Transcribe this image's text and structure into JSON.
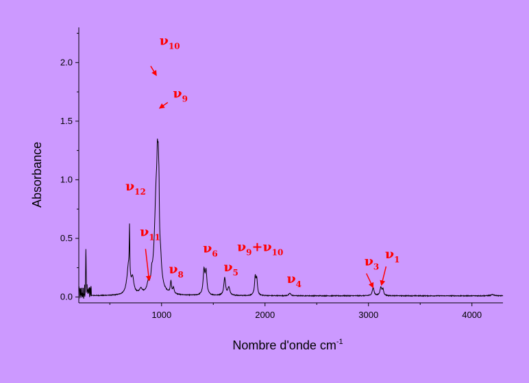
{
  "chart_data": {
    "type": "line",
    "title": "",
    "xlabel": "Nombre d'onde cm",
    "xlabel_superscript": "-1",
    "ylabel": "Absorbance",
    "xlim": [
      200,
      4300
    ],
    "ylim": [
      -0.05,
      2.3
    ],
    "x_ticks": [
      {
        "value": 1000,
        "label": "1000"
      },
      {
        "value": 2000,
        "label": "2000"
      },
      {
        "value": 3000,
        "label": "3000"
      },
      {
        "value": 4000,
        "label": "4000"
      }
    ],
    "y_ticks": [
      {
        "value": 0.0,
        "label": "0.0"
      },
      {
        "value": 0.5,
        "label": "0.5"
      },
      {
        "value": 1.0,
        "label": "1.0"
      },
      {
        "value": 1.5,
        "label": "1.5"
      },
      {
        "value": 2.0,
        "label": "2.0"
      }
    ],
    "grid": false,
    "line_color": "#000000",
    "annotation_color": "#ff0000",
    "series": [
      {
        "baseline": 0.01,
        "noise_region": {
          "from": 200,
          "to": 320,
          "amplitude": 0.06
        },
        "peaks": [
          {
            "x": 268,
            "y": 0.38,
            "width": 3
          },
          {
            "x": 680,
            "y": 0.24,
            "width": 18
          },
          {
            "x": 690,
            "y": 0.4,
            "width": 3
          },
          {
            "x": 720,
            "y": 0.12,
            "width": 15
          },
          {
            "x": 800,
            "y": 0.04,
            "width": 15
          },
          {
            "x": 870,
            "y": 0.06,
            "width": 12
          },
          {
            "x": 905,
            "y": 0.08,
            "width": 8
          },
          {
            "x": 950,
            "y": 0.9,
            "width": 22
          },
          {
            "x": 960,
            "y": 0.35,
            "width": 5
          },
          {
            "x": 968,
            "y": 0.55,
            "width": 6
          },
          {
            "x": 975,
            "y": 0.35,
            "width": 4
          },
          {
            "x": 990,
            "y": 0.15,
            "width": 12
          },
          {
            "x": 1090,
            "y": 0.1,
            "width": 7
          },
          {
            "x": 1115,
            "y": 0.05,
            "width": 8
          },
          {
            "x": 1410,
            "y": 0.2,
            "width": 10
          },
          {
            "x": 1430,
            "y": 0.19,
            "width": 10
          },
          {
            "x": 1610,
            "y": 0.15,
            "width": 10
          },
          {
            "x": 1650,
            "y": 0.07,
            "width": 12
          },
          {
            "x": 1905,
            "y": 0.15,
            "width": 8
          },
          {
            "x": 1920,
            "y": 0.13,
            "width": 8
          },
          {
            "x": 2240,
            "y": 0.02,
            "width": 12
          },
          {
            "x": 3045,
            "y": 0.07,
            "width": 10
          },
          {
            "x": 3120,
            "y": 0.07,
            "width": 10
          },
          {
            "x": 3140,
            "y": 0.05,
            "width": 8
          },
          {
            "x": 4200,
            "y": 0.01,
            "width": 20
          }
        ]
      }
    ],
    "annotations": [
      {
        "symbol": "ν",
        "sub": "10",
        "text_at": [
          980,
          2.15
        ],
        "arrow_from": [
          895,
          1.97
        ],
        "arrow_to": [
          950,
          1.89
        ]
      },
      {
        "symbol": "ν",
        "sub": "9",
        "text_at": [
          1110,
          1.7
        ],
        "arrow_from": [
          1060,
          1.66
        ],
        "arrow_to": [
          980,
          1.61
        ]
      },
      {
        "symbol": "ν",
        "sub": "12",
        "text_at": [
          650,
          0.91
        ]
      },
      {
        "symbol": "ν",
        "sub": "11",
        "text_at": [
          790,
          0.52
        ],
        "arrow_from": [
          845,
          0.41
        ],
        "arrow_to": [
          880,
          0.14
        ]
      },
      {
        "symbol": "ν",
        "sub": "8",
        "text_at": [
          1070,
          0.2
        ]
      },
      {
        "symbol": "ν",
        "sub": "6",
        "text_at": [
          1400,
          0.38
        ]
      },
      {
        "symbol": "ν",
        "sub": "5",
        "text_at": [
          1600,
          0.22
        ]
      },
      {
        "symbol": "ν",
        "sub": "9",
        "plus_symbol": "ν",
        "plus_sub": "10",
        "text_at": [
          1730,
          0.39
        ]
      },
      {
        "symbol": "ν",
        "sub": "4",
        "text_at": [
          2210,
          0.12
        ]
      },
      {
        "symbol": "ν",
        "sub": "3",
        "text_at": [
          2960,
          0.27
        ],
        "arrow_from": [
          2980,
          0.2
        ],
        "arrow_to": [
          3045,
          0.08
        ]
      },
      {
        "symbol": "ν",
        "sub": "1",
        "text_at": [
          3160,
          0.33
        ],
        "arrow_from": [
          3170,
          0.26
        ],
        "arrow_to": [
          3125,
          0.1
        ]
      }
    ]
  }
}
